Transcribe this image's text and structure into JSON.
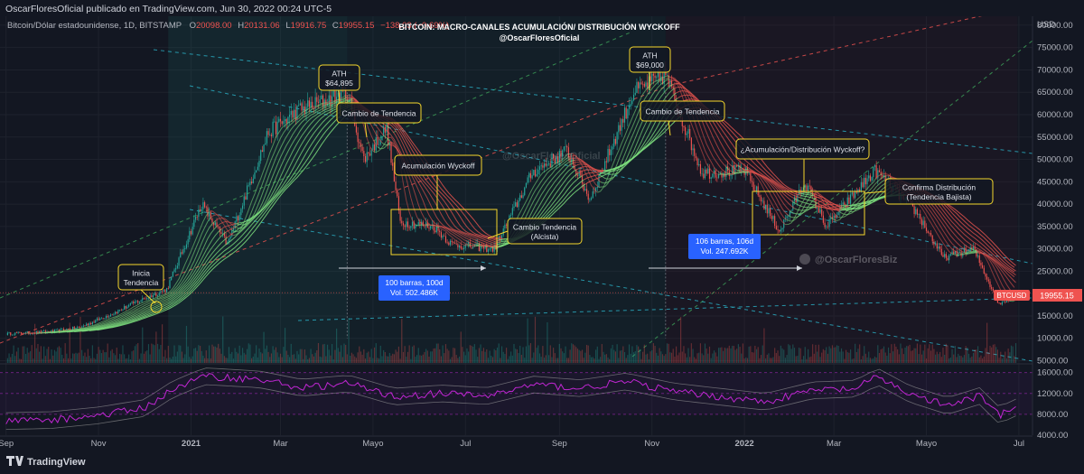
{
  "header": {
    "publish_line": "OscarFloresOficial publicado en TradingView.com, Jun 30, 2022 00:24 UTC-5",
    "symbol": "Bitcoin/Dólar estadounidense, 1D, BITSTAMP",
    "o_label": "O",
    "o_value": "20098.00",
    "h_label": "H",
    "h_value": "20131.06",
    "l_label": "L",
    "l_value": "19916.75",
    "c_label": "C",
    "c_value": "19955.15",
    "change": "−138.03 (−0.69%)"
  },
  "title": {
    "line1": "BITCOIN: MACRO-CANALES ACUMULACIÓN/ DISTRIBUCIÓN WYCKOFF",
    "line2": "@OscarFloresOficial"
  },
  "currency": "USD",
  "price_tag": {
    "symbol": "BTCUSD",
    "value": "19955.15"
  },
  "watermarks": [
    "@OscarFloresOficial",
    "@OscarFloresBiz"
  ],
  "brand": "TradingView",
  "annotations": [
    {
      "id": "inicia",
      "lines": [
        "Inicia",
        "Tendencia"
      ]
    },
    {
      "id": "ath1",
      "lines": [
        "ATH",
        "$64,895"
      ]
    },
    {
      "id": "cambio1",
      "lines": [
        "Cambio de Tendencia"
      ]
    },
    {
      "id": "acum",
      "lines": [
        "Acumulación Wyckoff"
      ]
    },
    {
      "id": "alcista",
      "lines": [
        "Cambio Tendencia",
        "(Alcista)"
      ]
    },
    {
      "id": "ath2",
      "lines": [
        "ATH",
        "$69,000"
      ]
    },
    {
      "id": "cambio2",
      "lines": [
        "Cambio de Tendencia"
      ]
    },
    {
      "id": "acumdist",
      "lines": [
        "¿Acumulación/Distribución Wyckoff?"
      ]
    },
    {
      "id": "confirma",
      "lines": [
        "Confirma Distribución",
        "(Tendencia Bajista)"
      ]
    }
  ],
  "measure_labels": [
    {
      "id": "m1",
      "lines": [
        "100 barras, 100d",
        "Vol. 502.486K"
      ]
    },
    {
      "id": "m2",
      "lines": [
        "106 barras, 106d",
        "Vol. 247.692K"
      ]
    }
  ],
  "colors": {
    "background": "#131722",
    "up": "#26a69a",
    "down": "#ef5350",
    "annotation": "#f5d72c",
    "measure": "#2962ff",
    "rsi": "#c026d3",
    "ribbon_bull": "#7ee07e",
    "ribbon_bear": "#e0524d"
  },
  "chart_data": {
    "type": "line",
    "title": "BITCOIN: MACRO-CANALES ACUMULACIÓN/ DISTRIBUCIÓN WYCKOFF",
    "subtitle": "@OscarFloresOficial",
    "series": [
      {
        "values": [
          [
            "2020-09-01",
            11000
          ],
          [
            "2020-10-01",
            11500
          ],
          [
            "2020-10-20",
            12500
          ],
          [
            "2020-11-10",
            15500
          ],
          [
            "2020-11-25",
            18000
          ],
          [
            "2020-12-16",
            21000
          ],
          [
            "2021-01-08",
            40000
          ],
          [
            "2021-01-25",
            31000
          ],
          [
            "2021-02-21",
            56000
          ],
          [
            "2021-03-13",
            61000
          ],
          [
            "2021-04-14",
            64895
          ],
          [
            "2021-04-25",
            50000
          ],
          [
            "2021-05-10",
            57000
          ],
          [
            "2021-05-19",
            36000
          ],
          [
            "2021-06-10",
            35000
          ],
          [
            "2021-06-22",
            31000
          ],
          [
            "2021-07-20",
            30000
          ],
          [
            "2021-08-14",
            47000
          ],
          [
            "2021-09-06",
            52000
          ],
          [
            "2021-09-21",
            41000
          ],
          [
            "2021-10-20",
            65000
          ],
          [
            "2021-11-10",
            69000
          ],
          [
            "2021-12-04",
            47000
          ],
          [
            "2022-01-01",
            47500
          ],
          [
            "2022-01-24",
            34000
          ],
          [
            "2022-02-10",
            45000
          ],
          [
            "2022-02-24",
            35000
          ],
          [
            "2022-03-28",
            47500
          ],
          [
            "2022-04-25",
            38000
          ],
          [
            "2022-05-12",
            28000
          ],
          [
            "2022-06-01",
            30000
          ],
          [
            "2022-06-18",
            17600
          ],
          [
            "2022-06-29",
            19955
          ]
        ]
      }
    ],
    "indicator": {
      "name": "RSI",
      "values": [
        [
          "2020-09-01",
          6700
        ],
        [
          "2020-10-01",
          6900
        ],
        [
          "2020-11-01",
          7800
        ],
        [
          "2020-12-01",
          9200
        ],
        [
          "2020-12-20",
          12800
        ],
        [
          "2021-01-10",
          15300
        ],
        [
          "2021-02-15",
          14700
        ],
        [
          "2021-03-15",
          13100
        ],
        [
          "2021-04-15",
          13900
        ],
        [
          "2021-05-15",
          11400
        ],
        [
          "2021-06-15",
          12000
        ],
        [
          "2021-07-15",
          11500
        ],
        [
          "2021-08-15",
          13700
        ],
        [
          "2021-09-15",
          13000
        ],
        [
          "2021-10-15",
          14300
        ],
        [
          "2021-11-15",
          12400
        ],
        [
          "2021-12-15",
          11400
        ],
        [
          "2022-01-15",
          10400
        ],
        [
          "2022-02-15",
          12600
        ],
        [
          "2022-03-15",
          12900
        ],
        [
          "2022-03-30",
          15200
        ],
        [
          "2022-04-20",
          11900
        ],
        [
          "2022-05-15",
          9600
        ],
        [
          "2022-06-05",
          11500
        ],
        [
          "2022-06-18",
          7800
        ],
        [
          "2022-06-29",
          9300
        ]
      ]
    },
    "x_ticks": [
      "Sep",
      "Nov",
      "2021",
      "Mar",
      "Mayo",
      "Jul",
      "Sep",
      "Nov",
      "2022",
      "Mar",
      "Mayo",
      "Jul"
    ],
    "y_ticks": [
      "80000.00",
      "75000.00",
      "70000.00",
      "65000.00",
      "60000.00",
      "55000.00",
      "50000.00",
      "45000.00",
      "40000.00",
      "35000.00",
      "30000.00",
      "25000.00",
      "20000.00",
      "15000.00",
      "10000.00",
      "5000.00"
    ],
    "y2_ticks": [
      "16000.00",
      "12000.00",
      "8000.00",
      "4000.00"
    ],
    "ylabel": "USD",
    "ylim": [
      4500,
      82000
    ],
    "y2lim": [
      4000,
      17500
    ],
    "xlim": [
      "2020-08-28",
      "2022-07-10"
    ],
    "grid": true
  }
}
